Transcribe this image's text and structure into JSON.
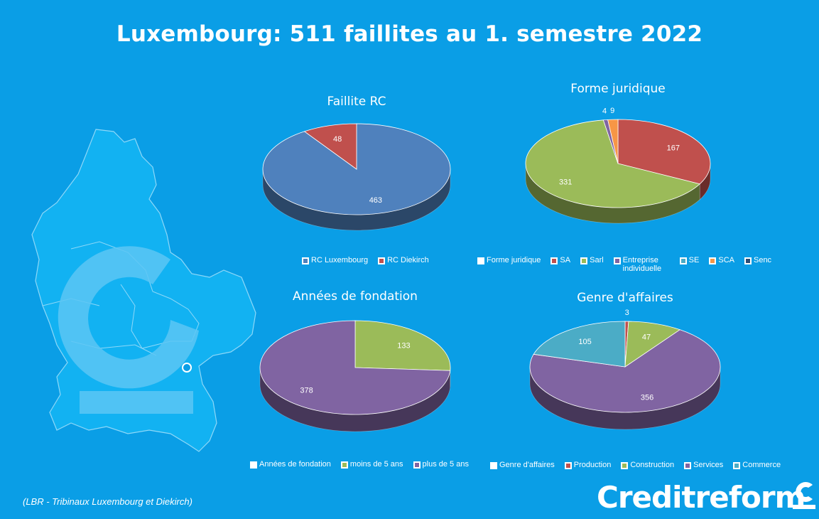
{
  "title": "Luxembourg: 511 faillites au 1. semestre 2022",
  "source_note": "(LBR - Tribinaux Luxembourg et Diekirch)",
  "brand": "Creditreform",
  "colors": {
    "background": "#0a9ee6",
    "blue": "#4f81bd",
    "red": "#c0504d",
    "green": "#9bbb59",
    "purple": "#8064a2",
    "teal": "#4bacc6",
    "orange": "#f79646"
  },
  "chart_data": [
    {
      "type": "pie",
      "title": "Faillite RC",
      "slices": [
        {
          "label": "RC Luxembourg",
          "value": 463,
          "color": "#4f81bd"
        },
        {
          "label": "RC Diekirch",
          "value": 48,
          "color": "#c0504d"
        }
      ],
      "legend": [
        "RC Luxembourg",
        "RC Diekirch"
      ]
    },
    {
      "type": "pie",
      "title": "Forme juridique",
      "slices": [
        {
          "label": "SA",
          "value": 167,
          "color": "#c0504d"
        },
        {
          "label": "Sarl",
          "value": 331,
          "color": "#9bbb59"
        },
        {
          "label": "Entreprise individuelle",
          "value": 4,
          "color": "#8064a2"
        },
        {
          "label": "SE",
          "value": 0,
          "color": "#4bacc6"
        },
        {
          "label": "SCA",
          "value": 9,
          "color": "#f79646"
        },
        {
          "label": "Senc",
          "value": 0,
          "color": "#2c4d75"
        }
      ],
      "legend": [
        "Forme juridique",
        "SA",
        "Sarl",
        "Entreprise individuelle",
        "SE",
        "SCA",
        "Senc"
      ]
    },
    {
      "type": "pie",
      "title": "Années de fondation",
      "slices": [
        {
          "label": "moins de 5 ans",
          "value": 133,
          "color": "#9bbb59"
        },
        {
          "label": "plus de 5 ans",
          "value": 378,
          "color": "#8064a2"
        }
      ],
      "legend": [
        "Années de fondation",
        "moins de 5 ans",
        "plus de 5 ans"
      ]
    },
    {
      "type": "pie",
      "title": "Genre d'affaires",
      "slices": [
        {
          "label": "Production",
          "value": 3,
          "color": "#c0504d"
        },
        {
          "label": "Construction",
          "value": 47,
          "color": "#9bbb59"
        },
        {
          "label": "Services",
          "value": 356,
          "color": "#8064a2"
        },
        {
          "label": "Commerce",
          "value": 105,
          "color": "#4bacc6"
        }
      ],
      "legend": [
        "Genre d'affaires",
        "Production",
        "Construction",
        "Services",
        "Commerce"
      ]
    }
  ]
}
